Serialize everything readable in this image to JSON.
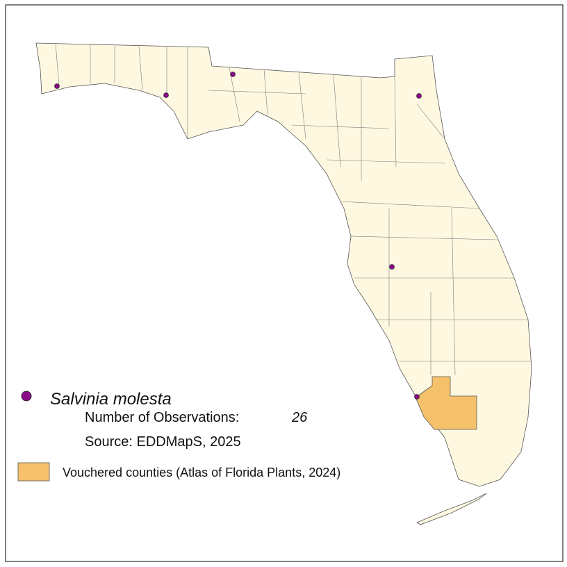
{
  "legend": {
    "species": "Salvinia molesta",
    "observations_label": "Number of Observations:",
    "observations_count": "26",
    "source": "Source: EDDMapS, 2025",
    "vouchered": "Vouchered counties (Atlas of Florida Plants, 2024)"
  }
}
